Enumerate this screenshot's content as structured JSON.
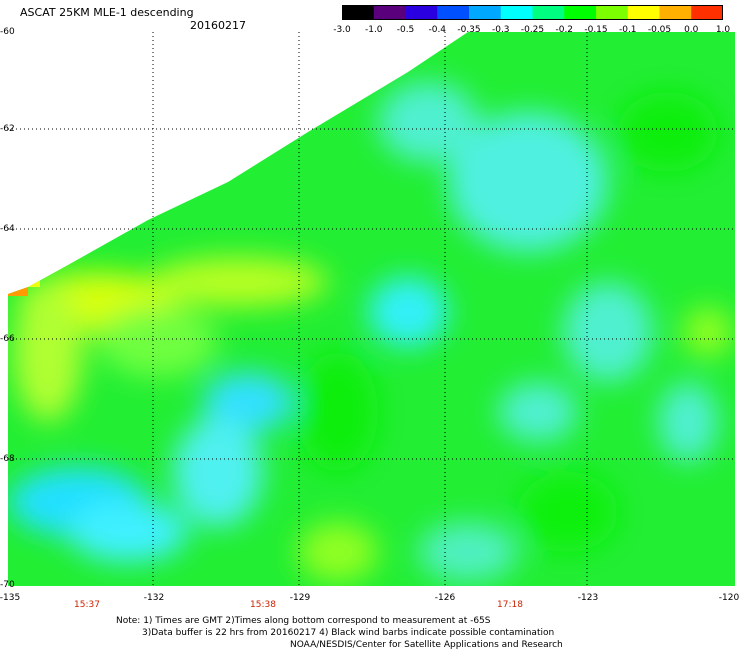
{
  "header": {
    "title": "ASCAT 25KM MLE-1 descending",
    "date": "20160217"
  },
  "colorbar": {
    "labels": [
      "-3.0",
      "-1.0",
      "-0.5",
      "-0.4",
      "-0.35",
      "-0.3",
      "-0.25",
      "-0.2",
      "-0.15",
      "-0.1",
      "-0.05",
      "0.0",
      "1.0"
    ],
    "colors": [
      "#000000",
      "#5a007d",
      "#2a00e0",
      "#0050ff",
      "#00a8ff",
      "#00ffff",
      "#00ff80",
      "#00ff00",
      "#7cff00",
      "#ffff00",
      "#ffb000",
      "#ff3000"
    ]
  },
  "map": {
    "lat_labels": [
      "-60",
      "-62",
      "-64",
      "-66",
      "-68",
      "-70"
    ],
    "lon_labels": [
      "-135",
      "-132",
      "-129",
      "-126",
      "-123",
      "-120"
    ],
    "times": [
      "15:37",
      "15:38",
      "17:18"
    ]
  },
  "notes": {
    "line1": "Note: 1) Times are GMT 2)Times along bottom correspond to measurement at -65S",
    "line2": "3)Data buffer is 22 hrs from 20160217 4) Black wind barbs indicate possible contamination",
    "credit": "NOAA/NESDIS/Center for Satellite Applications and Research"
  }
}
